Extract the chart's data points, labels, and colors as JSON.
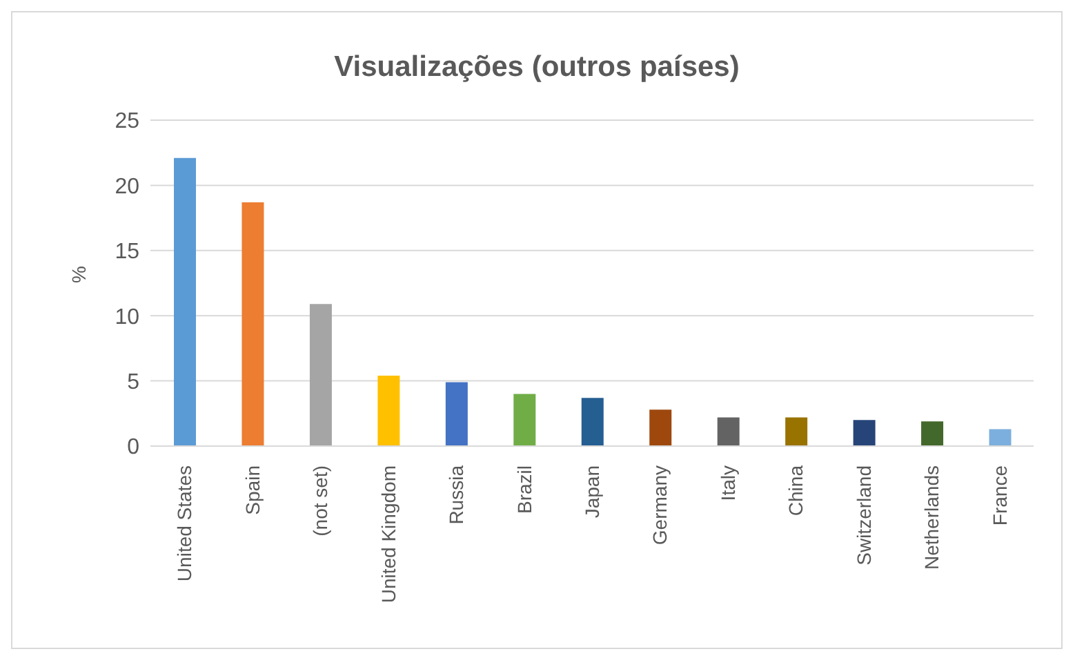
{
  "chart_data": {
    "type": "bar",
    "title": "Visualizações (outros países)",
    "ylabel": "%",
    "categories": [
      "United States",
      "Spain",
      "(not set)",
      "United Kingdom",
      "Russia",
      "Brazil",
      "Japan",
      "Germany",
      "Italy",
      "China",
      "Switzerland",
      "Netherlands",
      "France"
    ],
    "values": [
      22.1,
      18.7,
      10.9,
      5.4,
      4.9,
      4.0,
      3.7,
      2.8,
      2.2,
      2.2,
      2.0,
      1.9,
      1.3
    ],
    "colors": [
      "#5b9bd5",
      "#ed7d31",
      "#a5a5a5",
      "#ffc000",
      "#4472c4",
      "#70ad47",
      "#255e91",
      "#9e480e",
      "#636363",
      "#997300",
      "#264478",
      "#43682b",
      "#7cafdd"
    ],
    "ylim": [
      0,
      25
    ],
    "yticks": [
      0,
      5,
      10,
      15,
      20,
      25
    ],
    "grid": "y"
  }
}
